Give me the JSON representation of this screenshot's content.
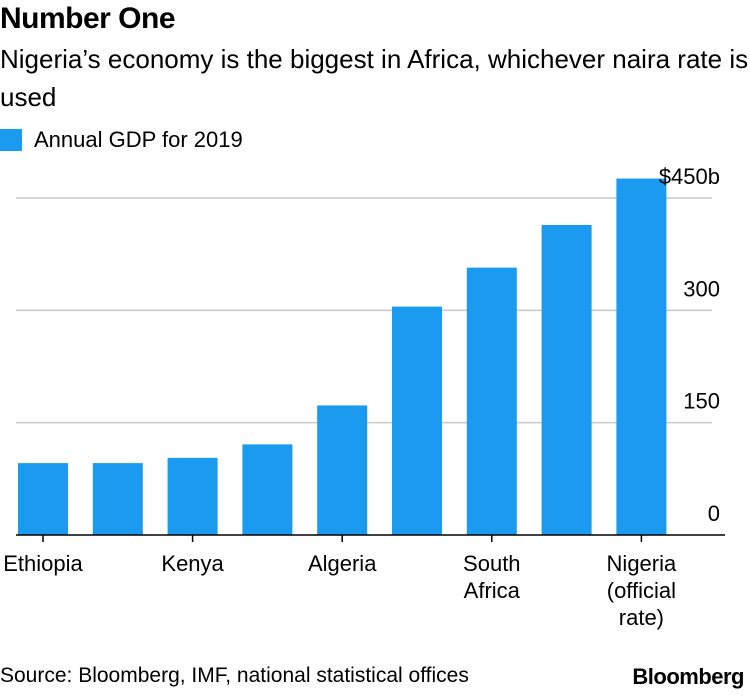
{
  "header": {
    "title": "Number One",
    "subtitle": "Nigeria’s economy is the biggest in Africa, whichever naira rate is used"
  },
  "footer": {
    "source": "Source: Bloomberg, IMF, national statistical offices",
    "brand": "Bloomberg"
  },
  "colors": {
    "bar": "#1a9bf0",
    "grid": "#c8c8c8",
    "axis": "#000000"
  },
  "chart_data": {
    "type": "bar",
    "title": "Number One",
    "subtitle": "Nigeria’s economy is the biggest in Africa, whichever naira rate is used",
    "legend": "top-left",
    "series": [
      {
        "name": "Annual GDP for 2019",
        "values": [
          96,
          96,
          103,
          121,
          173,
          305,
          357,
          414,
          476
        ]
      }
    ],
    "categories": [
      "Ethiopia",
      "",
      "Kenya",
      "",
      "Algeria",
      "",
      "South Africa",
      "",
      "Nigeria (official rate)"
    ],
    "category_labels": [
      {
        "index": 0,
        "lines": [
          "Ethiopia"
        ]
      },
      {
        "index": 2,
        "lines": [
          "Kenya"
        ]
      },
      {
        "index": 4,
        "lines": [
          "Algeria"
        ]
      },
      {
        "index": 6,
        "lines": [
          "South",
          "Africa"
        ]
      },
      {
        "index": 8,
        "lines": [
          "Nigeria",
          "(official",
          "rate)"
        ]
      }
    ],
    "y_ticks": [
      {
        "value": 0,
        "label": "0"
      },
      {
        "value": 150,
        "label": "150"
      },
      {
        "value": 300,
        "label": "300"
      },
      {
        "value": 450,
        "label": "$450b"
      }
    ],
    "ylim": [
      0,
      450
    ],
    "grid": true,
    "xlabel": "",
    "ylabel": ""
  }
}
